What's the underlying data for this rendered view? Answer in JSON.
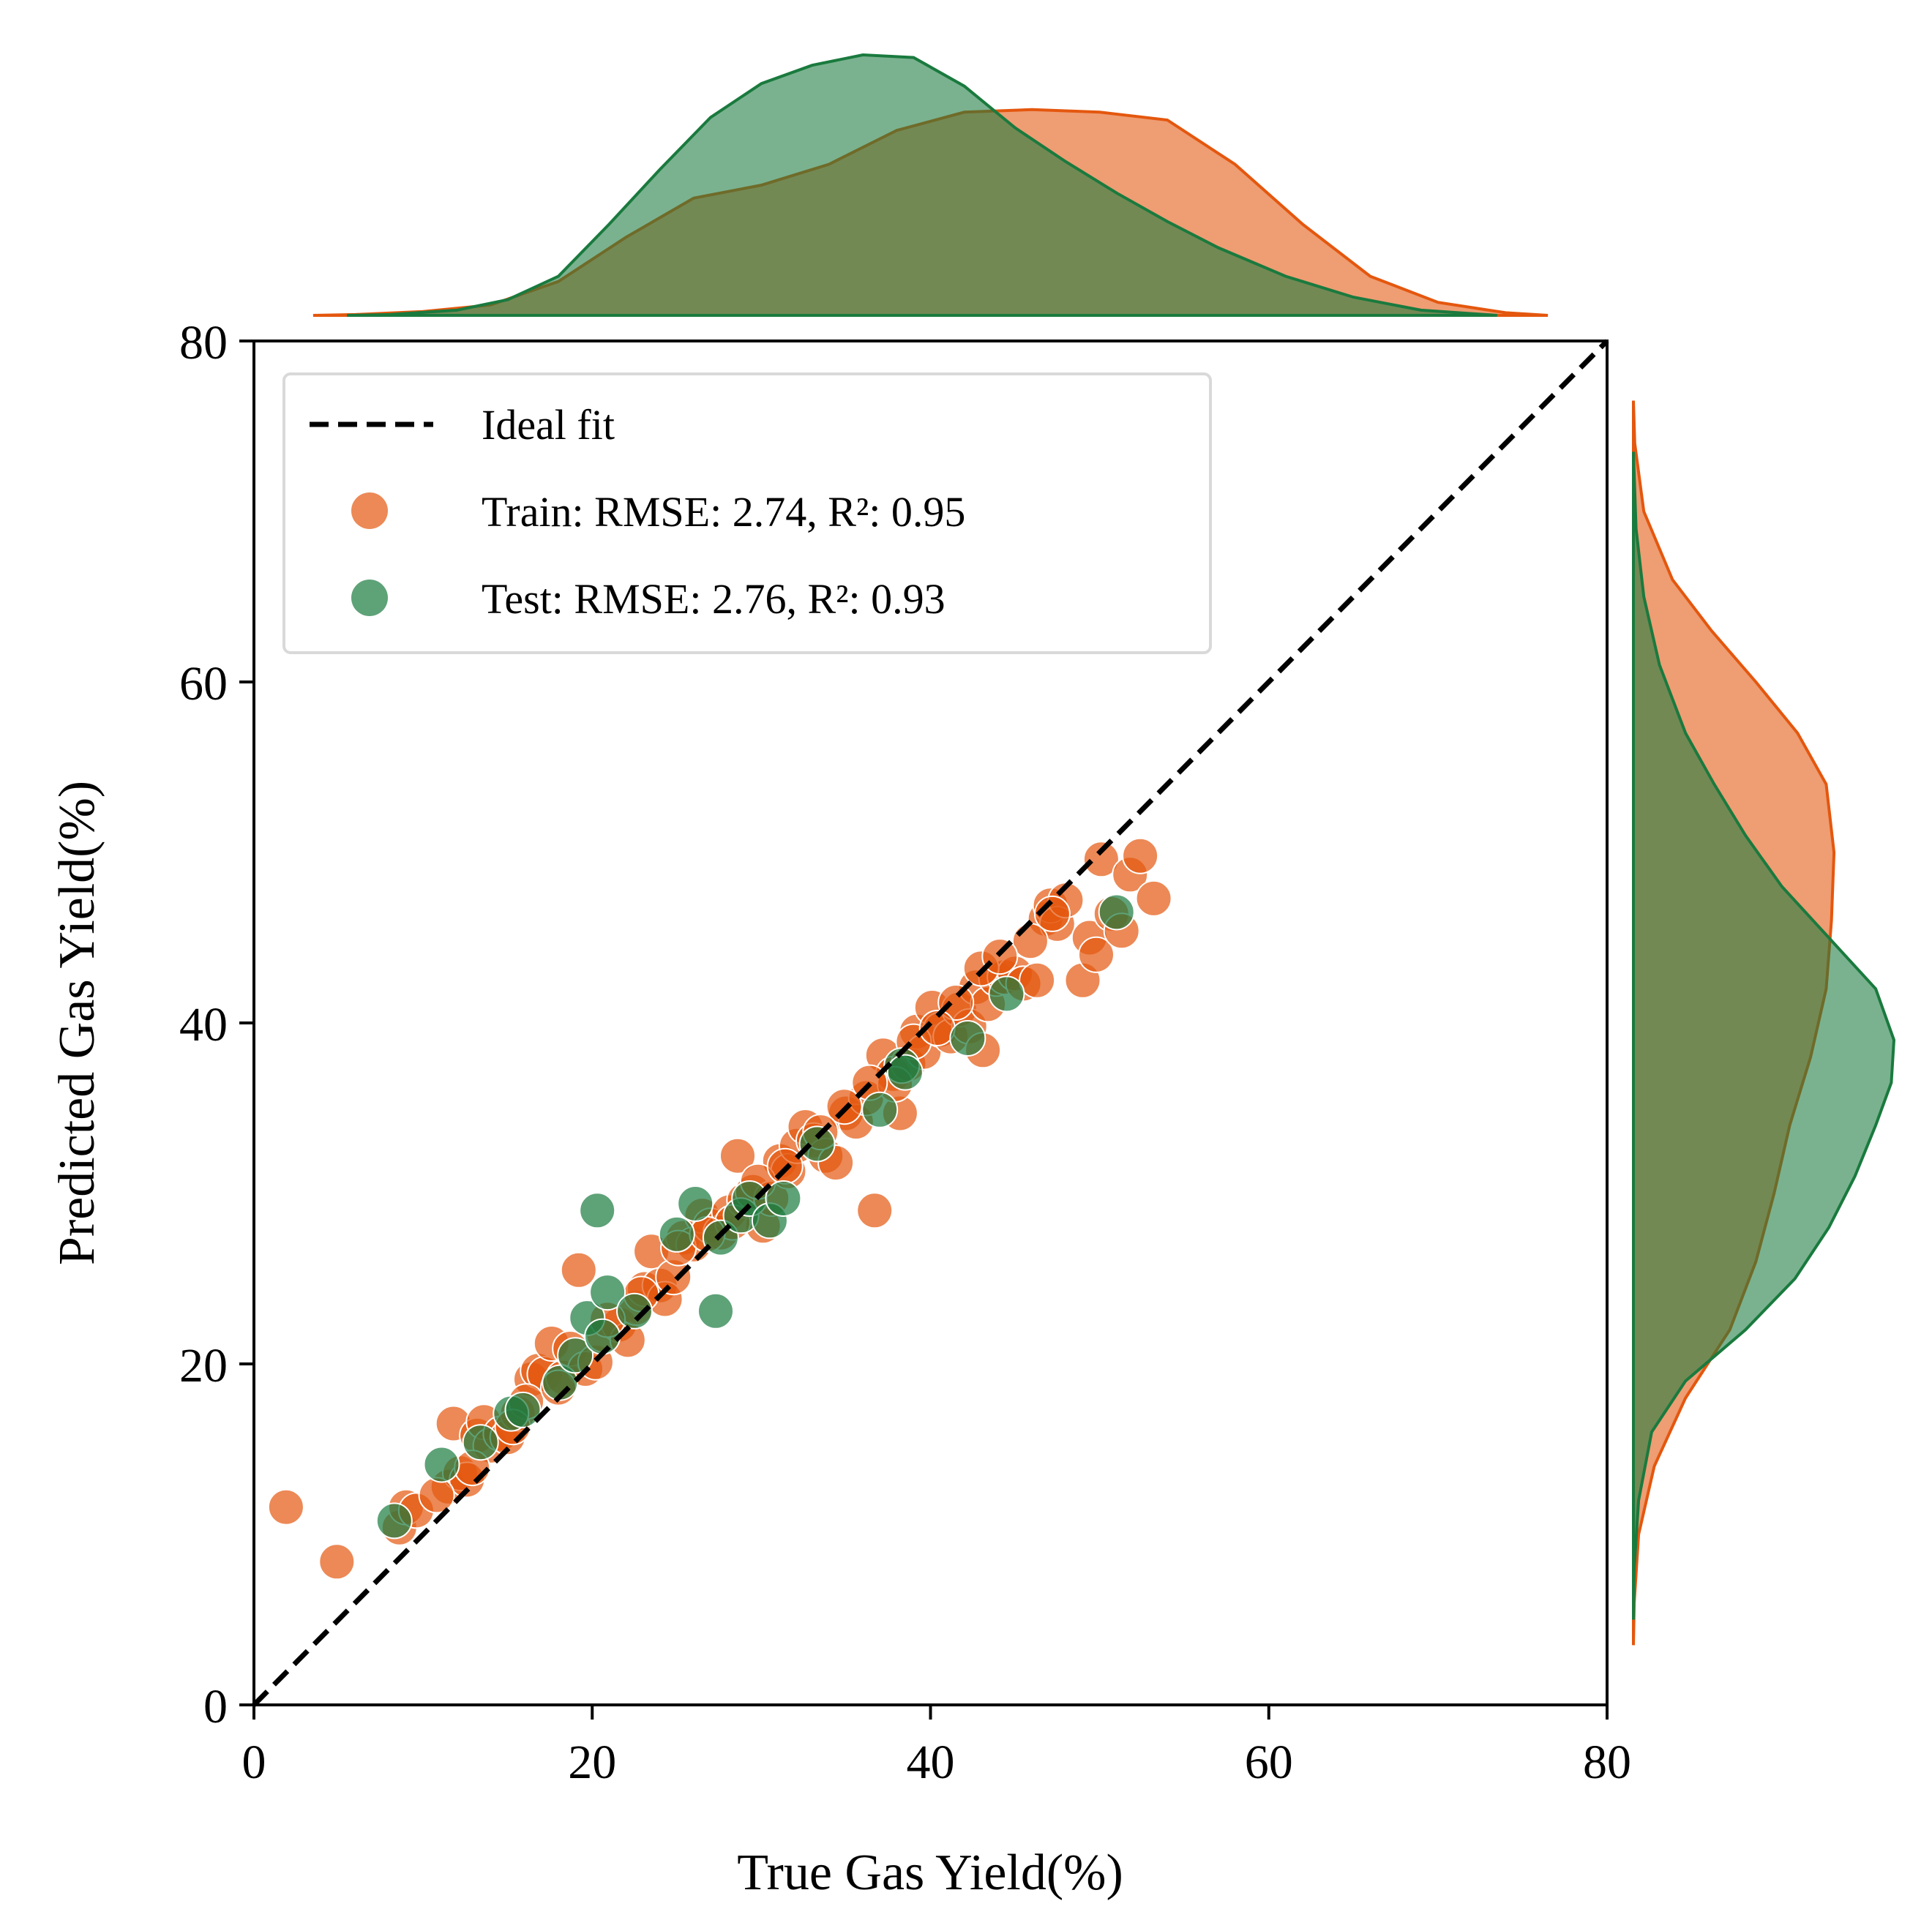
{
  "colors": {
    "train": "#e4570e",
    "test": "#1a7a3e",
    "ideal": "#000000"
  },
  "chart_data": {
    "type": "scatter",
    "title": "",
    "xlabel": "True Gas Yield(%)",
    "ylabel": "Predicted Gas Yield(%)",
    "xlim": [
      0,
      80
    ],
    "ylim": [
      0,
      80
    ],
    "xticks": [
      "0",
      "20",
      "40",
      "60",
      "80"
    ],
    "yticks": [
      "0",
      "20",
      "40",
      "60",
      "80"
    ],
    "grid": false,
    "legend_position": "top-left",
    "legend": [
      {
        "key": "ideal",
        "label": "Ideal fit",
        "marker": "dashed-line"
      },
      {
        "key": "train",
        "label": "Train: RMSE: 2.74, R²: 0.95",
        "marker": "circle"
      },
      {
        "key": "test",
        "label": "Test: RMSE: 2.76, R²: 0.93",
        "marker": "circle"
      }
    ],
    "ideal_line": {
      "x": [
        0,
        80
      ],
      "y": [
        0,
        80
      ]
    },
    "series": [
      {
        "name": "Train: RMSE: 2.74, R²: 0.95",
        "color": "#e4570e",
        "points": [
          [
            1.9,
            11.6
          ],
          [
            4.9,
            8.4
          ],
          [
            8.6,
            10.4
          ],
          [
            9.0,
            11.6
          ],
          [
            9.6,
            11.4
          ],
          [
            11.5,
            12.8
          ],
          [
            11.8,
            16.5
          ],
          [
            12.2,
            13.6
          ],
          [
            12.6,
            13.2
          ],
          [
            13.2,
            15.8
          ],
          [
            13.6,
            16.6
          ],
          [
            14.0,
            15.2
          ],
          [
            14.6,
            15.9
          ],
          [
            15.0,
            15.7
          ],
          [
            15.6,
            17.1
          ],
          [
            16.4,
            19.1
          ],
          [
            16.8,
            19.6
          ],
          [
            17.2,
            19.4
          ],
          [
            17.6,
            21.2
          ],
          [
            18.3,
            19.2
          ],
          [
            18.7,
            20.9
          ],
          [
            19.2,
            25.5
          ],
          [
            19.6,
            19.7
          ],
          [
            20.2,
            20.1
          ],
          [
            20.7,
            21.7
          ],
          [
            21.6,
            22.3
          ],
          [
            22.1,
            21.4
          ],
          [
            22.6,
            23.3
          ],
          [
            23.1,
            24.4
          ],
          [
            23.5,
            26.6
          ],
          [
            24.0,
            24.6
          ],
          [
            24.3,
            23.8
          ],
          [
            24.8,
            25.1
          ],
          [
            25.4,
            27.4
          ],
          [
            26.0,
            27.0
          ],
          [
            26.5,
            28.7
          ],
          [
            27.0,
            28.1
          ],
          [
            27.6,
            27.7
          ],
          [
            28.1,
            28.9
          ],
          [
            28.6,
            32.2
          ],
          [
            29.0,
            29.6
          ],
          [
            29.5,
            30.1
          ],
          [
            30.1,
            28.1
          ],
          [
            30.6,
            29.7
          ],
          [
            31.1,
            31.9
          ],
          [
            31.6,
            31.3
          ],
          [
            32.1,
            32.8
          ],
          [
            32.6,
            33.9
          ],
          [
            33.1,
            33.1
          ],
          [
            33.8,
            32.2
          ],
          [
            34.4,
            31.8
          ],
          [
            35.0,
            34.7
          ],
          [
            35.6,
            34.2
          ],
          [
            36.2,
            35.6
          ],
          [
            36.7,
            29.0
          ],
          [
            37.2,
            38.1
          ],
          [
            37.8,
            37.0
          ],
          [
            38.2,
            34.7
          ],
          [
            38.7,
            37.6
          ],
          [
            39.2,
            39.5
          ],
          [
            39.6,
            38.3
          ],
          [
            40.1,
            40.9
          ],
          [
            40.6,
            39.6
          ],
          [
            41.2,
            39.2
          ],
          [
            41.7,
            40.8
          ],
          [
            42.3,
            39.8
          ],
          [
            42.7,
            42.1
          ],
          [
            43.1,
            38.4
          ],
          [
            43.4,
            41.1
          ],
          [
            43.9,
            42.6
          ],
          [
            44.4,
            42.7
          ],
          [
            45.0,
            42.9
          ],
          [
            45.5,
            42.3
          ],
          [
            46.3,
            42.5
          ],
          [
            46.8,
            46.1
          ],
          [
            47.1,
            46.9
          ],
          [
            47.5,
            45.8
          ],
          [
            48.0,
            47.2
          ],
          [
            49.0,
            42.5
          ],
          [
            49.4,
            45.0
          ],
          [
            49.8,
            44.0
          ],
          [
            50.1,
            49.6
          ],
          [
            50.7,
            46.4
          ],
          [
            51.3,
            45.4
          ],
          [
            51.8,
            48.7
          ],
          [
            52.4,
            49.8
          ],
          [
            53.2,
            47.3
          ],
          [
            12.9,
            13.9
          ],
          [
            16.1,
            17.8
          ],
          [
            20.9,
            22.6
          ],
          [
            25.1,
            26.8
          ],
          [
            29.8,
            30.7
          ],
          [
            34.9,
            35.1
          ],
          [
            39.0,
            38.9
          ],
          [
            43.0,
            43.2
          ],
          [
            47.2,
            46.4
          ],
          [
            15.3,
            16.3
          ],
          [
            22.9,
            24.1
          ],
          [
            28.3,
            28.3
          ],
          [
            33.5,
            33.6
          ],
          [
            37.9,
            36.4
          ],
          [
            41.5,
            41.2
          ],
          [
            45.9,
            44.8
          ],
          [
            10.8,
            12.3
          ],
          [
            18.0,
            18.6
          ],
          [
            26.8,
            27.6
          ],
          [
            31.4,
            31.6
          ],
          [
            36.4,
            36.5
          ],
          [
            40.4,
            39.7
          ],
          [
            44.1,
            43.9
          ]
        ]
      },
      {
        "name": "Test: RMSE: 2.76, R²: 0.93",
        "color": "#1a7a3e",
        "points": [
          [
            8.3,
            10.8
          ],
          [
            11.1,
            14.1
          ],
          [
            13.4,
            15.4
          ],
          [
            15.2,
            17.1
          ],
          [
            15.9,
            17.3
          ],
          [
            18.1,
            18.9
          ],
          [
            19.0,
            20.5
          ],
          [
            19.7,
            22.7
          ],
          [
            20.3,
            29.0
          ],
          [
            20.6,
            21.6
          ],
          [
            20.9,
            24.2
          ],
          [
            22.5,
            23.1
          ],
          [
            25.0,
            27.6
          ],
          [
            26.1,
            29.4
          ],
          [
            27.3,
            23.1
          ],
          [
            27.6,
            27.4
          ],
          [
            28.8,
            28.7
          ],
          [
            29.3,
            29.7
          ],
          [
            30.5,
            28.4
          ],
          [
            31.3,
            29.7
          ],
          [
            33.3,
            32.9
          ],
          [
            37.0,
            34.9
          ],
          [
            38.3,
            37.5
          ],
          [
            38.5,
            37.1
          ],
          [
            42.2,
            39.1
          ],
          [
            44.5,
            41.7
          ],
          [
            51.0,
            46.5
          ]
        ]
      }
    ],
    "marginal_x": {
      "type": "kde",
      "train_curve": [
        [
          3.5,
          0.0
        ],
        [
          6,
          0.003
        ],
        [
          10,
          0.015
        ],
        [
          14,
          0.04
        ],
        [
          18,
          0.13
        ],
        [
          22,
          0.3
        ],
        [
          26,
          0.45
        ],
        [
          30,
          0.5
        ],
        [
          34,
          0.58
        ],
        [
          38,
          0.71
        ],
        [
          42,
          0.78
        ],
        [
          46,
          0.79
        ],
        [
          50,
          0.78
        ],
        [
          54,
          0.75
        ],
        [
          58,
          0.58
        ],
        [
          62,
          0.35
        ],
        [
          66,
          0.15
        ],
        [
          70,
          0.05
        ],
        [
          74,
          0.01
        ],
        [
          76.5,
          0.0
        ]
      ],
      "test_curve": [
        [
          5.5,
          0.0
        ],
        [
          8,
          0.003
        ],
        [
          12,
          0.02
        ],
        [
          15,
          0.06
        ],
        [
          18,
          0.15
        ],
        [
          21,
          0.35
        ],
        [
          24,
          0.56
        ],
        [
          27,
          0.76
        ],
        [
          30,
          0.89
        ],
        [
          33,
          0.96
        ],
        [
          36,
          1.0
        ],
        [
          39,
          0.99
        ],
        [
          42,
          0.88
        ],
        [
          45,
          0.72
        ],
        [
          48,
          0.59
        ],
        [
          51,
          0.47
        ],
        [
          54,
          0.36
        ],
        [
          57,
          0.26
        ],
        [
          61,
          0.15
        ],
        [
          65,
          0.07
        ],
        [
          69,
          0.02
        ],
        [
          73.5,
          0.0
        ]
      ]
    },
    "marginal_y": {
      "type": "kde",
      "train_curve": [
        [
          3.5,
          0.0
        ],
        [
          6,
          0.003
        ],
        [
          10,
          0.02
        ],
        [
          14,
          0.08
        ],
        [
          18,
          0.2
        ],
        [
          22,
          0.37
        ],
        [
          26,
          0.47
        ],
        [
          30,
          0.54
        ],
        [
          34,
          0.6
        ],
        [
          38,
          0.68
        ],
        [
          42,
          0.74
        ],
        [
          46,
          0.76
        ],
        [
          50,
          0.77
        ],
        [
          54,
          0.74
        ],
        [
          57,
          0.63
        ],
        [
          60,
          0.47
        ],
        [
          63,
          0.3
        ],
        [
          66,
          0.15
        ],
        [
          70,
          0.04
        ],
        [
          74,
          0.005
        ],
        [
          76.5,
          0.0
        ]
      ],
      "test_curve": [
        [
          5,
          0.0
        ],
        [
          8,
          0.003
        ],
        [
          12,
          0.02
        ],
        [
          16,
          0.07
        ],
        [
          19,
          0.2
        ],
        [
          22,
          0.43
        ],
        [
          25,
          0.62
        ],
        [
          28,
          0.75
        ],
        [
          31,
          0.85
        ],
        [
          34,
          0.93
        ],
        [
          36.5,
          0.99
        ],
        [
          39,
          1.0
        ],
        [
          42,
          0.93
        ],
        [
          45,
          0.75
        ],
        [
          48,
          0.57
        ],
        [
          51,
          0.43
        ],
        [
          54,
          0.31
        ],
        [
          57,
          0.2
        ],
        [
          61,
          0.1
        ],
        [
          65,
          0.04
        ],
        [
          69,
          0.01
        ],
        [
          73.5,
          0.0
        ]
      ]
    }
  }
}
